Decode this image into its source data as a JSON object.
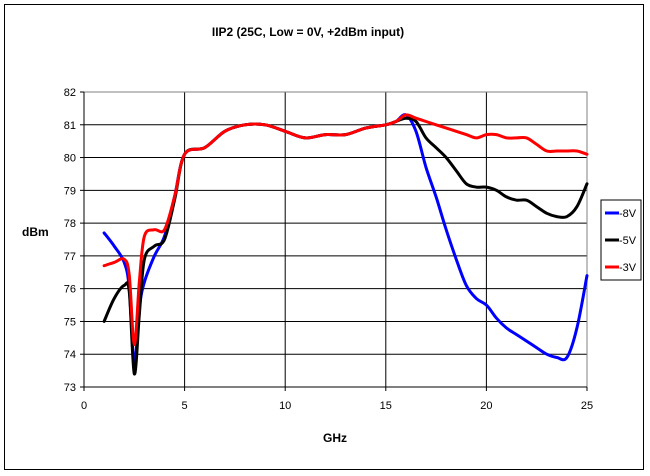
{
  "chart_data": {
    "type": "line",
    "title": "IIP2 (25C, Low = 0V, +2dBm input)",
    "xlabel": "GHz",
    "ylabel": "dBm",
    "xlim": [
      0,
      25
    ],
    "ylim": [
      73,
      82
    ],
    "xticks": [
      0,
      5,
      10,
      15,
      20,
      25
    ],
    "yticks": [
      73,
      74,
      75,
      76,
      77,
      78,
      79,
      80,
      81,
      82
    ],
    "grid": true,
    "legend_position": "right",
    "series": [
      {
        "name": "-8V",
        "color": "#0000ff",
        "x": [
          1,
          1.5,
          2,
          2.25,
          2.5,
          2.75,
          3,
          3.5,
          4,
          4.5,
          5,
          6,
          7,
          8,
          9,
          10,
          11,
          12,
          13,
          14,
          15,
          15.5,
          16,
          16.5,
          17,
          17.5,
          18,
          18.5,
          19,
          19.5,
          20,
          20.5,
          21,
          21.5,
          22,
          22.5,
          23,
          23.5,
          24,
          24.5,
          25
        ],
        "y": [
          77.7,
          77.3,
          76.8,
          76.0,
          73.7,
          75.4,
          76.2,
          77.0,
          77.6,
          78.8,
          80.1,
          80.3,
          80.8,
          81.0,
          81.0,
          80.8,
          80.6,
          80.7,
          80.7,
          80.9,
          81.0,
          81.1,
          81.3,
          80.8,
          79.7,
          78.8,
          77.8,
          76.9,
          76.1,
          75.7,
          75.5,
          75.1,
          74.8,
          74.6,
          74.4,
          74.2,
          74.0,
          73.9,
          73.9,
          74.8,
          76.4
        ]
      },
      {
        "name": "-5V",
        "color": "#000000",
        "x": [
          1,
          1.5,
          2,
          2.25,
          2.5,
          2.75,
          3,
          3.5,
          4,
          4.5,
          5,
          6,
          7,
          8,
          9,
          10,
          11,
          12,
          13,
          14,
          15,
          15.5,
          16,
          16.5,
          17,
          17.5,
          18,
          18.5,
          19,
          19.5,
          20,
          20.5,
          21,
          21.5,
          22,
          22.5,
          23,
          23.5,
          24,
          24.5,
          25
        ],
        "y": [
          75.0,
          75.7,
          76.1,
          75.9,
          73.4,
          75.2,
          76.9,
          77.3,
          77.5,
          78.7,
          80.1,
          80.3,
          80.8,
          81.0,
          81.0,
          80.8,
          80.6,
          80.7,
          80.7,
          80.9,
          81.0,
          81.1,
          81.2,
          81.1,
          80.6,
          80.3,
          80.0,
          79.6,
          79.2,
          79.1,
          79.1,
          79.0,
          78.8,
          78.7,
          78.7,
          78.5,
          78.3,
          78.2,
          78.2,
          78.5,
          79.2
        ]
      },
      {
        "name": "-3V",
        "color": "#ff0000",
        "x": [
          1,
          1.5,
          2,
          2.25,
          2.5,
          2.75,
          3,
          3.5,
          4,
          4.5,
          5,
          6,
          7,
          8,
          9,
          10,
          11,
          12,
          13,
          14,
          15,
          15.5,
          16,
          16.5,
          17,
          17.5,
          18,
          18.5,
          19,
          19.5,
          20,
          20.5,
          21,
          21.5,
          22,
          22.5,
          23,
          23.5,
          24,
          24.5,
          25
        ],
        "y": [
          76.7,
          76.8,
          76.9,
          76.4,
          74.3,
          76.2,
          77.6,
          77.8,
          77.8,
          78.8,
          80.1,
          80.3,
          80.8,
          81.0,
          81.0,
          80.8,
          80.6,
          80.7,
          80.7,
          80.9,
          81.0,
          81.1,
          81.3,
          81.2,
          81.1,
          81.0,
          80.9,
          80.8,
          80.7,
          80.6,
          80.7,
          80.7,
          80.6,
          80.6,
          80.6,
          80.4,
          80.2,
          80.2,
          80.2,
          80.2,
          80.1
        ]
      }
    ]
  }
}
